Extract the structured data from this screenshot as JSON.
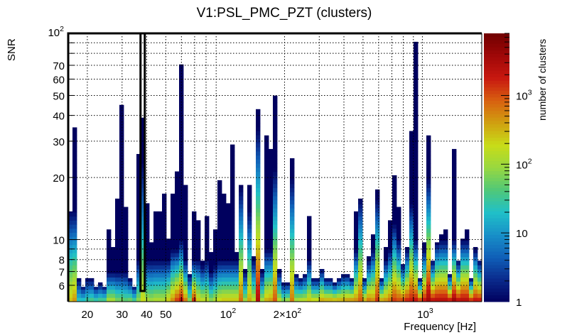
{
  "chart_data": {
    "type": "heatmap",
    "title": "V1:PSL_PMC_PZT (clusters)",
    "xlabel": "Frequency [Hz]",
    "ylabel": "SNR",
    "zlabel": "number of clusters",
    "xscale": "log",
    "yscale": "log",
    "zscale": "log",
    "xlim": [
      16,
      2000
    ],
    "ylim": [
      5,
      100
    ],
    "zlim": [
      1,
      8000
    ],
    "grid": true,
    "x_ticks": [
      {
        "value": 20,
        "label": "20"
      },
      {
        "value": 30,
        "label": "30"
      },
      {
        "value": 40,
        "label": "40"
      },
      {
        "value": 50,
        "label": "50"
      },
      {
        "value": 100,
        "label": "10",
        "sup": "2"
      },
      {
        "value": 200,
        "label": "2×10",
        "sup": "2"
      },
      {
        "value": 1000,
        "label": "10",
        "sup": "3"
      }
    ],
    "y_ticks": [
      {
        "value": 6,
        "label": "6"
      },
      {
        "value": 7,
        "label": "7"
      },
      {
        "value": 8,
        "label": "8"
      },
      {
        "value": 10,
        "label": "10"
      },
      {
        "value": 20,
        "label": "20"
      },
      {
        "value": 30,
        "label": "30"
      },
      {
        "value": 40,
        "label": "40"
      },
      {
        "value": 50,
        "label": "50"
      },
      {
        "value": 60,
        "label": "60"
      },
      {
        "value": 70,
        "label": "70"
      },
      {
        "value": 100,
        "label": "10",
        "sup": "2"
      }
    ],
    "z_ticks": [
      {
        "value": 1,
        "label": "1"
      },
      {
        "value": 10,
        "label": "10"
      },
      {
        "value": 100,
        "label": "10",
        "sup": "2"
      },
      {
        "value": 1000,
        "label": "10",
        "sup": "3"
      }
    ],
    "palette": [
      "#00005e",
      "#0a2a8c",
      "#1060b8",
      "#1890c8",
      "#20c0c8",
      "#50c878",
      "#98d840",
      "#c8dc18",
      "#d0a010",
      "#d86010",
      "#c81810",
      "#a00808",
      "#700000"
    ],
    "frame_color": "#000000",
    "highlight_bin_frequency": 38,
    "bins_snr_max": [
      13.7,
      35,
      6.5,
      5.9,
      6.5,
      6.5,
      5.9,
      6.2,
      5.9,
      11.2,
      9.2,
      15.8,
      45,
      14.4,
      6.5,
      5.9,
      26,
      39,
      15,
      9.7,
      13.7,
      13.7,
      16.7,
      10.1,
      16.7,
      21.4,
      70.7,
      18.4,
      6.8,
      13.7,
      12.4,
      7.9,
      13,
      8.7,
      11.2,
      19.4,
      16.7,
      15,
      28.9,
      8.7,
      18.4,
      7.2,
      18.4,
      8.3,
      42.9,
      7.2,
      32,
      27.5,
      49.9,
      7.2,
      6.2,
      6.2,
      24.8,
      6.8,
      6.5,
      6.8,
      13,
      6.5,
      6.5,
      7.2,
      6.5,
      6.5,
      6.2,
      6.5,
      6.8,
      6.8,
      6.5,
      13.7,
      15.8,
      6.5,
      8.3,
      10.6,
      17.5,
      6.5,
      9.2,
      12.4,
      20.5,
      14.4,
      7.6,
      9.2,
      33.6,
      91,
      6.5,
      9.7,
      32,
      7.9,
      9.7,
      10.6,
      11.2,
      6.8,
      27.5,
      7.9,
      10.1,
      11.2,
      6.5,
      9.2,
      7.9
    ],
    "bins_count_at_snr_min": [
      300,
      500,
      30,
      30,
      40,
      50,
      40,
      50,
      50,
      150,
      150,
      80,
      80,
      60,
      80,
      50,
      100,
      200,
      150,
      120,
      150,
      150,
      150,
      300,
      600,
      1500,
      2500,
      800,
      100,
      2000,
      300,
      200,
      200,
      100,
      150,
      250,
      300,
      300,
      300,
      300,
      800,
      120,
      400,
      200,
      3000,
      150,
      400,
      500,
      1000,
      200,
      100,
      150,
      700,
      150,
      200,
      200,
      300,
      300,
      300,
      500,
      500,
      500,
      500,
      500,
      500,
      600,
      700,
      600,
      1000,
      500,
      800,
      600,
      1500,
      600,
      600,
      900,
      1500,
      1200,
      1500,
      2000,
      2000,
      2500,
      2000,
      2500,
      4000,
      3000,
      3000,
      3000,
      3000,
      3000,
      5000,
      3000,
      3000,
      3000,
      2500,
      2500,
      2500
    ],
    "bins_snr_single_cluster": [
      14,
      14,
      6.5,
      6,
      6.5,
      6.5,
      6,
      6.2,
      6,
      7,
      7,
      7,
      7,
      7,
      6.5,
      6,
      8,
      24,
      8,
      8,
      8,
      8,
      8,
      8,
      9,
      9,
      10,
      8,
      6.8,
      8,
      8,
      7.5,
      8,
      7,
      7.5,
      8,
      8,
      8,
      8,
      8,
      18,
      7,
      14,
      8,
      35,
      7,
      9,
      9,
      22,
      7,
      6.2,
      6.2,
      20,
      6.8,
      6.5,
      6.8,
      8,
      6.5,
      6.5,
      7.2,
      6.5,
      6.5,
      6.2,
      6.5,
      6.8,
      6.8,
      6.5,
      9,
      15.8,
      6.5,
      8,
      9,
      16,
      6.5,
      8,
      9,
      12,
      10,
      7.6,
      9,
      15,
      10,
      6.5,
      9,
      20,
      7.9,
      9.7,
      10,
      10,
      6.8,
      10,
      7.9,
      10,
      10,
      6.5,
      9,
      7.9
    ]
  }
}
